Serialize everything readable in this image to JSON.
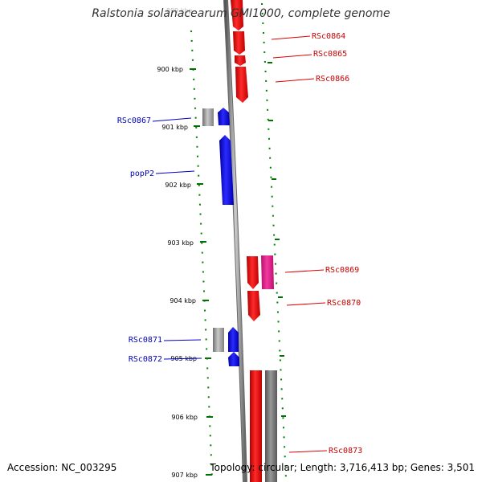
{
  "title": "Ralstonia solanacearum GMI1000, complete genome",
  "accession": "Accession: NC_003295",
  "summary": "Topology: circular; Length: 3,716,413 bp; Genes: 3,501",
  "colors": {
    "forward": "#ff0000",
    "reverse": "#0000ff",
    "pseudo": "#e8178b",
    "rna": "#777777",
    "backbone": "#888888",
    "tick": "#006600",
    "forward_label": "#cc0000",
    "reverse_label": "#0000bb"
  },
  "scale": {
    "ticks": [
      {
        "label": "900 kbp"
      },
      {
        "label": "901 kbp"
      },
      {
        "label": "902 kbp"
      },
      {
        "label": "903 kbp"
      },
      {
        "label": "904 kbp"
      },
      {
        "label": "905 kbp"
      },
      {
        "label": "906 kbp"
      },
      {
        "label": "907 kbp"
      }
    ]
  },
  "gene_labels": {
    "forward": [
      "RSc0864",
      "RSc0865",
      "RSc0866",
      "RSc0869",
      "RSc0870",
      "RSc0873"
    ],
    "reverse": [
      "RSc0867",
      "popP2",
      "RSc0871",
      "RSc0872"
    ]
  }
}
